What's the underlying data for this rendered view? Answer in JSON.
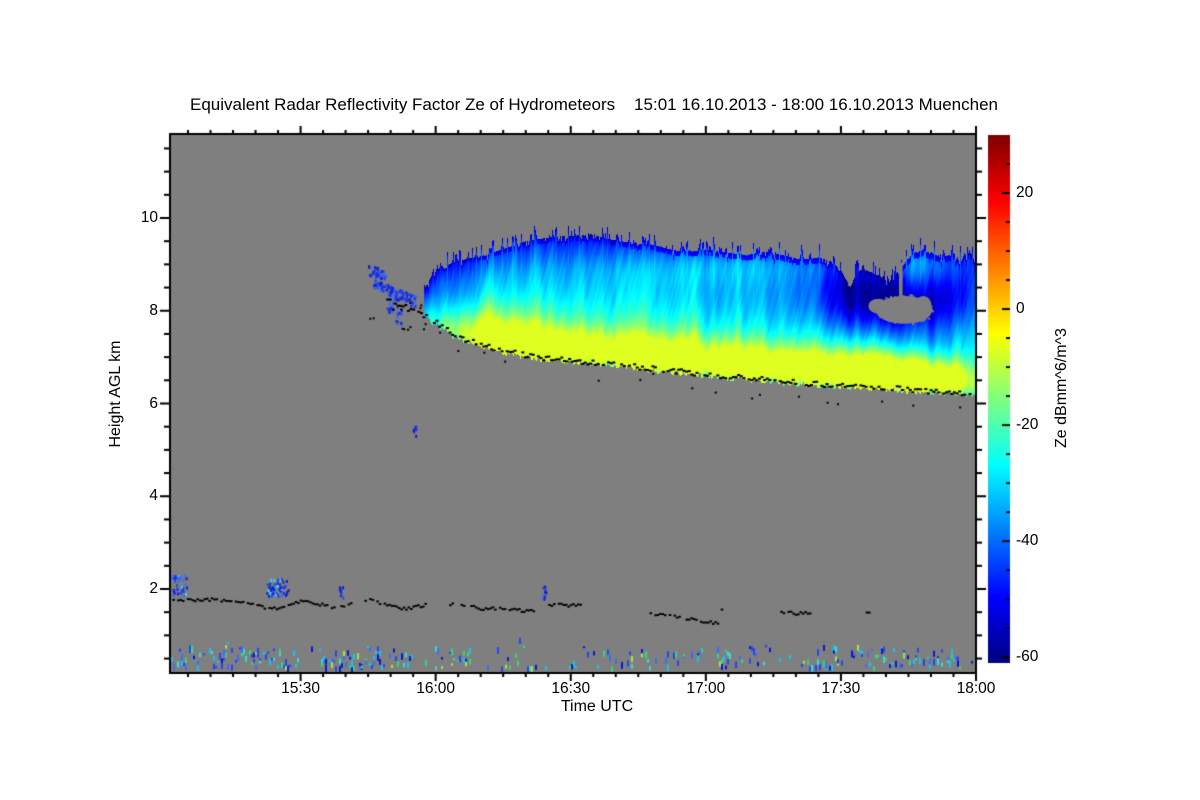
{
  "figure": {
    "background": "#ffffff",
    "frame_color": "#000000"
  },
  "chart_data": {
    "type": "heatmap",
    "title": "Equivalent Radar Reflectivity Factor Ze of Hydrometeors    15:01 16.10.2013 - 18:00 16.10.2013 Muenchen",
    "instrument_quantity": "Equivalent Radar Reflectivity Factor Ze of Hydrometeors",
    "time_start": "15:01 16.10.2013",
    "time_end": "18:00 16.10.2013",
    "station": "Muenchen",
    "xlabel": "Time UTC",
    "ylabel": "Height AGL km",
    "xlim_minutes": [
      0,
      179
    ],
    "x_ticks": [
      {
        "minute": 29,
        "label": "15:30"
      },
      {
        "minute": 59,
        "label": "16:00"
      },
      {
        "minute": 89,
        "label": "16:30"
      },
      {
        "minute": 119,
        "label": "17:00"
      },
      {
        "minute": 149,
        "label": "17:30"
      },
      {
        "minute": 179,
        "label": "18:00"
      }
    ],
    "x_minor_step_min": 5,
    "ylim_km": [
      0.19,
      11.81
    ],
    "y_ticks": [
      {
        "km": 2,
        "label": "2"
      },
      {
        "km": 4,
        "label": "4"
      },
      {
        "km": 6,
        "label": "6"
      },
      {
        "km": 8,
        "label": "8"
      },
      {
        "km": 10,
        "label": "10"
      }
    ],
    "y_minor_step_km": 0.5,
    "no_echo_color": "#7f7f7f",
    "colorbar": {
      "label": "Ze dBmm^6/m^3",
      "units": "dBmm^6/m^3",
      "vmin": -61,
      "vmax": 30,
      "colormap": "jet",
      "ticks": [
        {
          "value": 20,
          "label": "20"
        },
        {
          "value": 0,
          "label": "0"
        },
        {
          "value": -20,
          "label": "-20"
        },
        {
          "value": -40,
          "label": "-40"
        },
        {
          "value": -60,
          "label": "-60"
        }
      ],
      "minor_step": 5
    },
    "cloud_layer": {
      "description": "Descending ice cloud band, reflectivity -55 to -8 dBZe",
      "t_start_min": 56.3,
      "top_trail": [
        [
          56.3,
          8.45
        ],
        [
          58,
          8.75
        ],
        [
          60,
          8.95
        ],
        [
          62,
          9.0
        ],
        [
          64,
          9.05
        ],
        [
          67,
          9.15
        ],
        [
          70,
          9.2
        ],
        [
          73,
          9.3
        ],
        [
          76,
          9.4
        ],
        [
          79,
          9.5
        ],
        [
          82,
          9.55
        ],
        [
          86,
          9.6
        ],
        [
          90,
          9.62
        ],
        [
          94,
          9.65
        ],
        [
          97,
          9.55
        ],
        [
          100,
          9.5
        ],
        [
          104,
          9.45
        ],
        [
          108,
          9.4
        ],
        [
          112,
          9.3
        ],
        [
          116,
          9.28
        ],
        [
          120,
          9.32
        ],
        [
          124,
          9.25
        ],
        [
          128,
          9.2
        ],
        [
          132,
          9.28
        ],
        [
          136,
          9.2
        ],
        [
          140,
          9.1
        ],
        [
          144,
          9.15
        ],
        [
          147,
          9.05
        ],
        [
          149,
          8.85
        ],
        [
          151,
          8.5
        ],
        [
          152.5,
          8.85
        ],
        [
          154,
          8.9
        ],
        [
          156,
          8.8
        ],
        [
          158,
          8.75
        ],
        [
          159.5,
          8.6
        ],
        [
          161,
          8.8
        ],
        [
          163,
          9.0
        ],
        [
          165,
          9.25
        ],
        [
          167,
          9.3
        ],
        [
          169,
          9.25
        ],
        [
          171,
          9.15
        ],
        [
          173,
          9.2
        ],
        [
          175,
          9.1
        ],
        [
          177,
          9.15
        ],
        [
          179,
          9.1
        ]
      ],
      "base_trail": [
        [
          48,
          8.3
        ],
        [
          51,
          8.15
        ],
        [
          54,
          8.0
        ],
        [
          56,
          7.93
        ],
        [
          58,
          7.82
        ],
        [
          60,
          7.7
        ],
        [
          62,
          7.55
        ],
        [
          64,
          7.45
        ],
        [
          67,
          7.35
        ],
        [
          70,
          7.25
        ],
        [
          74,
          7.15
        ],
        [
          78,
          7.08
        ],
        [
          83,
          7.0
        ],
        [
          88,
          6.95
        ],
        [
          94,
          6.9
        ],
        [
          100,
          6.85
        ],
        [
          106,
          6.78
        ],
        [
          112,
          6.72
        ],
        [
          118,
          6.65
        ],
        [
          124,
          6.6
        ],
        [
          130,
          6.55
        ],
        [
          136,
          6.5
        ],
        [
          142,
          6.45
        ],
        [
          148,
          6.4
        ],
        [
          154,
          6.38
        ],
        [
          160,
          6.35
        ],
        [
          166,
          6.3
        ],
        [
          172,
          6.27
        ],
        [
          179,
          6.22
        ]
      ],
      "value_profile": [
        [
          0,
          -57
        ],
        [
          0.05,
          -47
        ],
        [
          0.25,
          -39
        ],
        [
          0.55,
          -32
        ],
        [
          0.8,
          -28.5
        ],
        [
          0.93,
          -28
        ],
        [
          1,
          -32
        ]
      ],
      "enhancement_blobs": [
        [
          66,
          7.5,
          7,
          0.4,
          16
        ],
        [
          78,
          7.3,
          10,
          0.45,
          18
        ],
        [
          92,
          7.15,
          12,
          0.4,
          18
        ],
        [
          108,
          7.0,
          10,
          0.42,
          18
        ],
        [
          124,
          6.9,
          10,
          0.4,
          18
        ],
        [
          143,
          6.78,
          12,
          0.36,
          24
        ],
        [
          160,
          6.62,
          8,
          0.34,
          25
        ],
        [
          172,
          6.5,
          6,
          0.32,
          23
        ],
        [
          128,
          9.0,
          18,
          0.3,
          10
        ],
        [
          167,
          9.0,
          7,
          0.33,
          12
        ],
        [
          95,
          8.3,
          22,
          0.8,
          7
        ],
        [
          152,
          8.3,
          7,
          0.5,
          -14
        ],
        [
          163,
          8.1,
          8,
          0.5,
          -16
        ],
        [
          174,
          8.4,
          4,
          0.5,
          -8
        ],
        [
          57,
          8.3,
          3,
          0.5,
          -8
        ]
      ],
      "hole": {
        "ellipses": [
          [
            163,
            8.02,
            6.3,
            0.3
          ],
          [
            157.3,
            8.1,
            2.2,
            0.16
          ],
          [
            167.3,
            8.12,
            1.8,
            0.2
          ]
        ],
        "slit": [
          162.3,
          8.66,
          0.4,
          0.38
        ],
        "rim_dots": 46
      },
      "detached_streaks": [
        [
          44,
          8.9,
          47.5,
          8.8,
          0.1,
          50
        ],
        [
          45.2,
          8.62,
          49,
          8.45,
          0.09,
          40
        ],
        [
          48,
          8.45,
          54.5,
          8.22,
          0.13,
          80
        ]
      ],
      "detached_clusters": [
        [
          48.7,
          8.08,
          8,
          12,
          16
        ],
        [
          50.6,
          7.92,
          6,
          18,
          14
        ],
        [
          54.2,
          5.45,
          3,
          12,
          8
        ]
      ],
      "speck_box": [
        44,
        57,
        7.6,
        8.35,
        12
      ],
      "base_dots": {
        "t_start": 48,
        "prob": 0.82,
        "jitter": 5,
        "below_prob": 0.1,
        "below_max": 15
      }
    },
    "boundary_layer": {
      "black_trails": [
        [
          [
            0,
            1.8
          ],
          [
            4,
            1.77
          ],
          [
            8,
            1.8
          ],
          [
            12,
            1.76
          ],
          [
            16,
            1.72
          ],
          [
            20,
            1.66
          ],
          [
            22,
            1.58
          ],
          [
            24,
            1.62
          ],
          [
            26,
            1.7
          ],
          [
            29,
            1.76
          ],
          [
            32,
            1.72
          ],
          [
            35,
            1.65
          ],
          [
            37,
            1.62
          ],
          [
            39,
            1.68
          ],
          [
            42,
            1.8
          ],
          [
            44,
            1.78
          ],
          [
            46,
            1.72
          ],
          [
            49,
            1.66
          ],
          [
            52,
            1.58
          ],
          [
            54,
            1.62
          ],
          [
            57,
            1.7
          ]
        ],
        [
          [
            62,
            1.68
          ],
          [
            63,
            1.68
          ]
        ],
        [
          [
            64,
            1.7
          ],
          [
            67,
            1.63
          ],
          [
            70,
            1.58
          ],
          [
            73,
            1.62
          ],
          [
            76,
            1.57
          ],
          [
            79,
            1.55
          ],
          [
            81,
            1.56
          ]
        ],
        [
          [
            84,
            1.66
          ],
          [
            86,
            1.7
          ],
          [
            88,
            1.67
          ],
          [
            91,
            1.68
          ]
        ],
        [
          [
            106.5,
            1.5
          ],
          [
            109,
            1.47
          ],
          [
            112,
            1.43
          ],
          [
            115,
            1.38
          ],
          [
            118,
            1.32
          ],
          [
            121.5,
            1.27
          ]
        ],
        [
          [
            122.3,
            1.55
          ],
          [
            123.3,
            1.55
          ]
        ],
        [
          [
            135,
            1.5
          ],
          [
            137,
            1.52
          ],
          [
            139,
            1.49
          ],
          [
            142.3,
            1.5
          ]
        ],
        [
          [
            154.5,
            1.5
          ],
          [
            155.5,
            1.5
          ]
        ]
      ],
      "blue_blobs": [
        [
          1.9,
          2.08,
          15,
          22,
          40,
          0.1
        ],
        [
          23.7,
          2.05,
          22,
          17,
          55,
          0.28
        ],
        [
          37.9,
          1.95,
          4,
          11,
          9,
          0.0
        ],
        [
          83.0,
          1.95,
          4,
          13,
          9,
          0.0
        ]
      ],
      "blue_palette": [
        "#2446f0",
        "#1b2fd8",
        "#3f6cf8",
        "#1520c8"
      ],
      "cyan_color": "#2fd8f0",
      "speckles": {
        "h_range_km": [
          0.33,
          0.8
        ],
        "palette": [
          "#0a1ad0",
          "#2447f0",
          "#3f6af8",
          "#18c4f0",
          "#32dfd2",
          "#35d878",
          "#a8e24c"
        ],
        "weights": [
          0.18,
          0.22,
          0.15,
          0.17,
          0.1,
          0.11,
          0.07
        ],
        "density_segments": [
          [
            0,
            27,
            0.8
          ],
          [
            27,
            33,
            0.35
          ],
          [
            33,
            50,
            0.85
          ],
          [
            50,
            57,
            0.5
          ],
          [
            57,
            66,
            0.6
          ],
          [
            66,
            75,
            0.4
          ],
          [
            75,
            84,
            0.55
          ],
          [
            84,
            93,
            0.3
          ],
          [
            93,
            108,
            0.55
          ],
          [
            108,
            118,
            0.35
          ],
          [
            118,
            131,
            0.5
          ],
          [
            131,
            141,
            0.3
          ],
          [
            141,
            155,
            0.65
          ],
          [
            155,
            166,
            0.8
          ],
          [
            166,
            179,
            0.65
          ]
        ]
      }
    }
  }
}
